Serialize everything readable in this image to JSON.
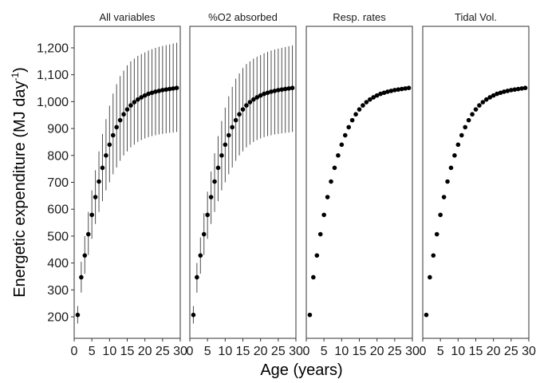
{
  "chart_data": {
    "type": "scatter",
    "xlabel": "Age (years)",
    "ylabel": "Energetic expenditure (MJ day",
    "ylabel_superscript": "-1",
    "ylabel_close": ")",
    "xlim": [
      0,
      30
    ],
    "ylim": [
      120,
      1280
    ],
    "x_ticks": [
      0,
      5,
      10,
      15,
      20,
      25,
      30
    ],
    "x_tick_labels": [
      "0",
      "5",
      "10",
      "15",
      "20",
      "25",
      "30"
    ],
    "y_ticks": [
      200,
      300,
      400,
      500,
      600,
      700,
      800,
      900,
      1000,
      1100,
      1200
    ],
    "y_tick_labels": [
      "200",
      "300",
      "400",
      "500",
      "600",
      "700",
      "800",
      "900",
      "1,000",
      "1,100",
      "1,200"
    ],
    "grid": false,
    "x": [
      1,
      2,
      3,
      4,
      5,
      6,
      7,
      8,
      9,
      10,
      11,
      12,
      13,
      14,
      15,
      16,
      17,
      18,
      19,
      20,
      21,
      22,
      23,
      24,
      25,
      26,
      27,
      28,
      29
    ],
    "y": [
      207,
      347,
      428,
      507,
      579,
      645,
      703,
      754,
      800,
      840,
      875,
      905,
      931,
      953,
      971,
      986,
      998,
      1008,
      1016,
      1023,
      1029,
      1033,
      1037,
      1040,
      1043,
      1045,
      1047,
      1049,
      1051
    ],
    "panels": [
      {
        "title": "All variables",
        "error_bars": true,
        "lower": [
          175,
          290,
          360,
          430,
          490,
          545,
          590,
          630,
          670,
          700,
          730,
          755,
          780,
          800,
          815,
          830,
          840,
          850,
          857,
          863,
          868,
          872,
          875,
          878,
          880,
          882,
          884,
          885,
          887
        ],
        "upper": [
          240,
          405,
          500,
          590,
          670,
          745,
          815,
          880,
          935,
          985,
          1030,
          1065,
          1095,
          1115,
          1135,
          1150,
          1160,
          1170,
          1177,
          1183,
          1190,
          1195,
          1200,
          1204,
          1207,
          1210,
          1213,
          1216,
          1219
        ]
      },
      {
        "title": "%O2 absorbed",
        "error_bars": true,
        "lower": [
          175,
          290,
          360,
          430,
          490,
          545,
          590,
          630,
          670,
          700,
          730,
          755,
          780,
          800,
          815,
          830,
          840,
          850,
          857,
          863,
          868,
          872,
          875,
          878,
          880,
          882,
          884,
          885,
          887
        ],
        "upper": [
          240,
          400,
          495,
          585,
          665,
          740,
          808,
          872,
          928,
          978,
          1020,
          1055,
          1085,
          1105,
          1125,
          1140,
          1150,
          1160,
          1167,
          1173,
          1180,
          1185,
          1190,
          1194,
          1197,
          1200,
          1203,
          1206,
          1209
        ]
      },
      {
        "title": "Resp. rates",
        "error_bars": false
      },
      {
        "title": "Tidal Vol.",
        "error_bars": false
      }
    ]
  },
  "colors": {
    "points": "#000000",
    "error_bars": "#4d4d4d",
    "panel_border": "#333333",
    "strip_background": "#ffffff"
  }
}
